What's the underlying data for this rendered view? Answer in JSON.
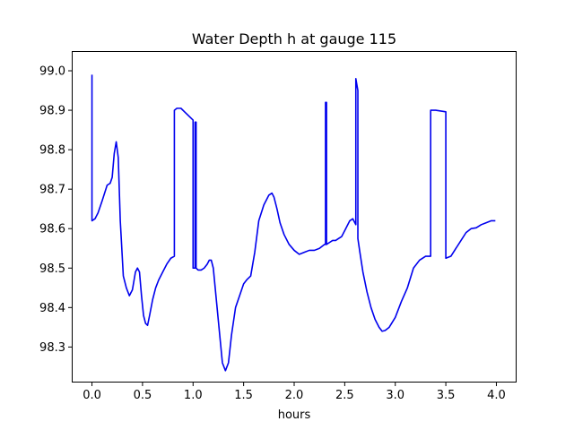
{
  "chart_data": {
    "type": "line",
    "title": "Water Depth h at gauge 115",
    "xlabel": "hours",
    "ylabel": "",
    "xlim": [
      -0.2,
      4.2
    ],
    "ylim": [
      98.21,
      99.05
    ],
    "xticks": [
      0.0,
      0.5,
      1.0,
      1.5,
      2.0,
      2.5,
      3.0,
      3.5,
      4.0
    ],
    "xtick_labels": [
      "0.0",
      "0.5",
      "1.0",
      "1.5",
      "2.0",
      "2.5",
      "3.0",
      "3.5",
      "4.0"
    ],
    "yticks": [
      98.3,
      98.4,
      98.5,
      98.6,
      98.7,
      98.8,
      98.9,
      99.0
    ],
    "ytick_labels": [
      "98.3",
      "98.4",
      "98.5",
      "98.6",
      "98.7",
      "98.8",
      "98.9",
      "99.0"
    ],
    "grid": false,
    "colors": {
      "line": "#0000ee",
      "axes": "#000000",
      "background": "#ffffff"
    },
    "series": [
      {
        "x": [
          0.0,
          0.0,
          0.0,
          0.03,
          0.06,
          0.1,
          0.15,
          0.18,
          0.2,
          0.22,
          0.24,
          0.26,
          0.28,
          0.31,
          0.34,
          0.37,
          0.4,
          0.43,
          0.45,
          0.47,
          0.49,
          0.51,
          0.53,
          0.55,
          0.57,
          0.6,
          0.63,
          0.66,
          0.7,
          0.74,
          0.78,
          0.815,
          0.815,
          0.84,
          0.88,
          0.92,
          0.96,
          1.0,
          1.0,
          1.02,
          1.02,
          1.03,
          1.03,
          1.05,
          1.08,
          1.11,
          1.14,
          1.16,
          1.18,
          1.2,
          1.23,
          1.26,
          1.29,
          1.32,
          1.35,
          1.38,
          1.42,
          1.46,
          1.5,
          1.53,
          1.57,
          1.61,
          1.65,
          1.7,
          1.75,
          1.78,
          1.8,
          1.83,
          1.86,
          1.9,
          1.95,
          2.0,
          2.05,
          2.1,
          2.15,
          2.2,
          2.25,
          2.3,
          2.31,
          2.31,
          2.32,
          2.32,
          2.35,
          2.38,
          2.41,
          2.44,
          2.47,
          2.51,
          2.55,
          2.58,
          2.6,
          2.61,
          2.61,
          2.63,
          2.63,
          2.65,
          2.68,
          2.72,
          2.76,
          2.8,
          2.84,
          2.87,
          2.9,
          2.94,
          3.0,
          3.06,
          3.12,
          3.18,
          3.24,
          3.3,
          3.35,
          3.35,
          3.4,
          3.45,
          3.5,
          3.5,
          3.55,
          3.6,
          3.65,
          3.7,
          3.75,
          3.8,
          3.85,
          3.9,
          3.95,
          3.99
        ],
        "y": [
          98.99,
          98.99,
          98.62,
          98.625,
          98.64,
          98.67,
          98.71,
          98.715,
          98.73,
          98.79,
          98.82,
          98.78,
          98.62,
          98.48,
          98.45,
          98.43,
          98.445,
          98.49,
          98.5,
          98.49,
          98.43,
          98.38,
          98.36,
          98.355,
          98.38,
          98.42,
          98.45,
          98.47,
          98.49,
          98.51,
          98.525,
          98.53,
          98.9,
          98.905,
          98.905,
          98.895,
          98.885,
          98.875,
          98.5,
          98.5,
          98.87,
          98.87,
          98.5,
          98.495,
          98.495,
          98.5,
          98.51,
          98.52,
          98.52,
          98.5,
          98.42,
          98.34,
          98.26,
          98.24,
          98.26,
          98.33,
          98.4,
          98.43,
          98.46,
          98.47,
          98.48,
          98.54,
          98.62,
          98.66,
          98.685,
          98.69,
          98.68,
          98.65,
          98.615,
          98.585,
          98.56,
          98.545,
          98.535,
          98.54,
          98.545,
          98.545,
          98.55,
          98.56,
          98.56,
          98.92,
          98.92,
          98.56,
          98.565,
          98.57,
          98.57,
          98.575,
          98.58,
          98.6,
          98.62,
          98.625,
          98.615,
          98.61,
          98.98,
          98.95,
          98.575,
          98.54,
          98.49,
          98.44,
          98.4,
          98.37,
          98.35,
          98.34,
          98.342,
          98.35,
          98.375,
          98.415,
          98.45,
          98.5,
          98.52,
          98.53,
          98.53,
          98.9,
          98.9,
          98.898,
          98.896,
          98.525,
          98.53,
          98.55,
          98.57,
          98.59,
          98.6,
          98.602,
          98.61,
          98.615,
          98.62,
          98.62
        ]
      }
    ]
  }
}
